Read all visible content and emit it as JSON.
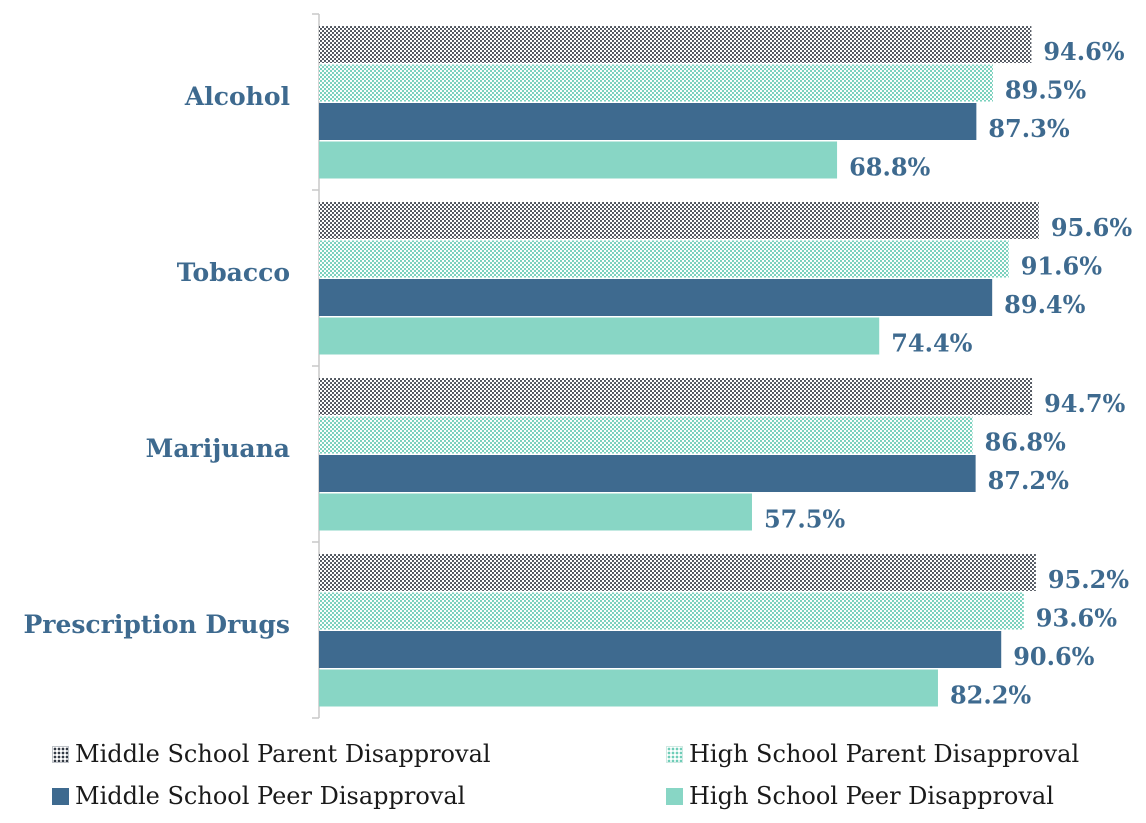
{
  "chart_data": {
    "type": "bar",
    "orientation": "horizontal",
    "categories": [
      "Alcohol",
      "Tobacco",
      "Marijuana",
      "Prescription Drugs"
    ],
    "series": [
      {
        "name": "Middle School Parent Disapproval",
        "values": [
          94.6,
          95.6,
          94.7,
          95.2
        ],
        "labels": [
          "94.6%",
          "95.6%",
          "94.7%",
          "95.2%"
        ],
        "color": "#333a44",
        "pattern": "dense-dots"
      },
      {
        "name": "High School Parent Disapproval",
        "values": [
          89.5,
          91.6,
          86.8,
          93.6
        ],
        "labels": [
          "89.5%",
          "91.6%",
          "86.8%",
          "93.6%"
        ],
        "color": "#6fcdb8",
        "pattern": "light-dots"
      },
      {
        "name": "Middle School Peer Disapproval",
        "values": [
          87.3,
          89.4,
          87.2,
          90.6
        ],
        "labels": [
          "87.3%",
          "89.4%",
          "87.2%",
          "90.6%"
        ],
        "color": "#3e6a8f",
        "pattern": "solid"
      },
      {
        "name": "High School Peer Disapproval",
        "values": [
          68.8,
          74.4,
          57.5,
          82.2
        ],
        "labels": [
          "68.8%",
          "74.4%",
          "57.5%",
          "82.2%"
        ],
        "color": "#88d6c5",
        "pattern": "solid"
      }
    ],
    "xlim": [
      0,
      100
    ],
    "grid": false,
    "legend_position": "bottom",
    "title": "",
    "xlabel": "",
    "ylabel": ""
  },
  "legend": {
    "ms_parent": "Middle School Parent Disapproval",
    "hs_parent": "High School Parent Disapproval",
    "ms_peer": "Middle School Peer Disapproval",
    "hs_peer": "High School Peer Disapproval"
  }
}
